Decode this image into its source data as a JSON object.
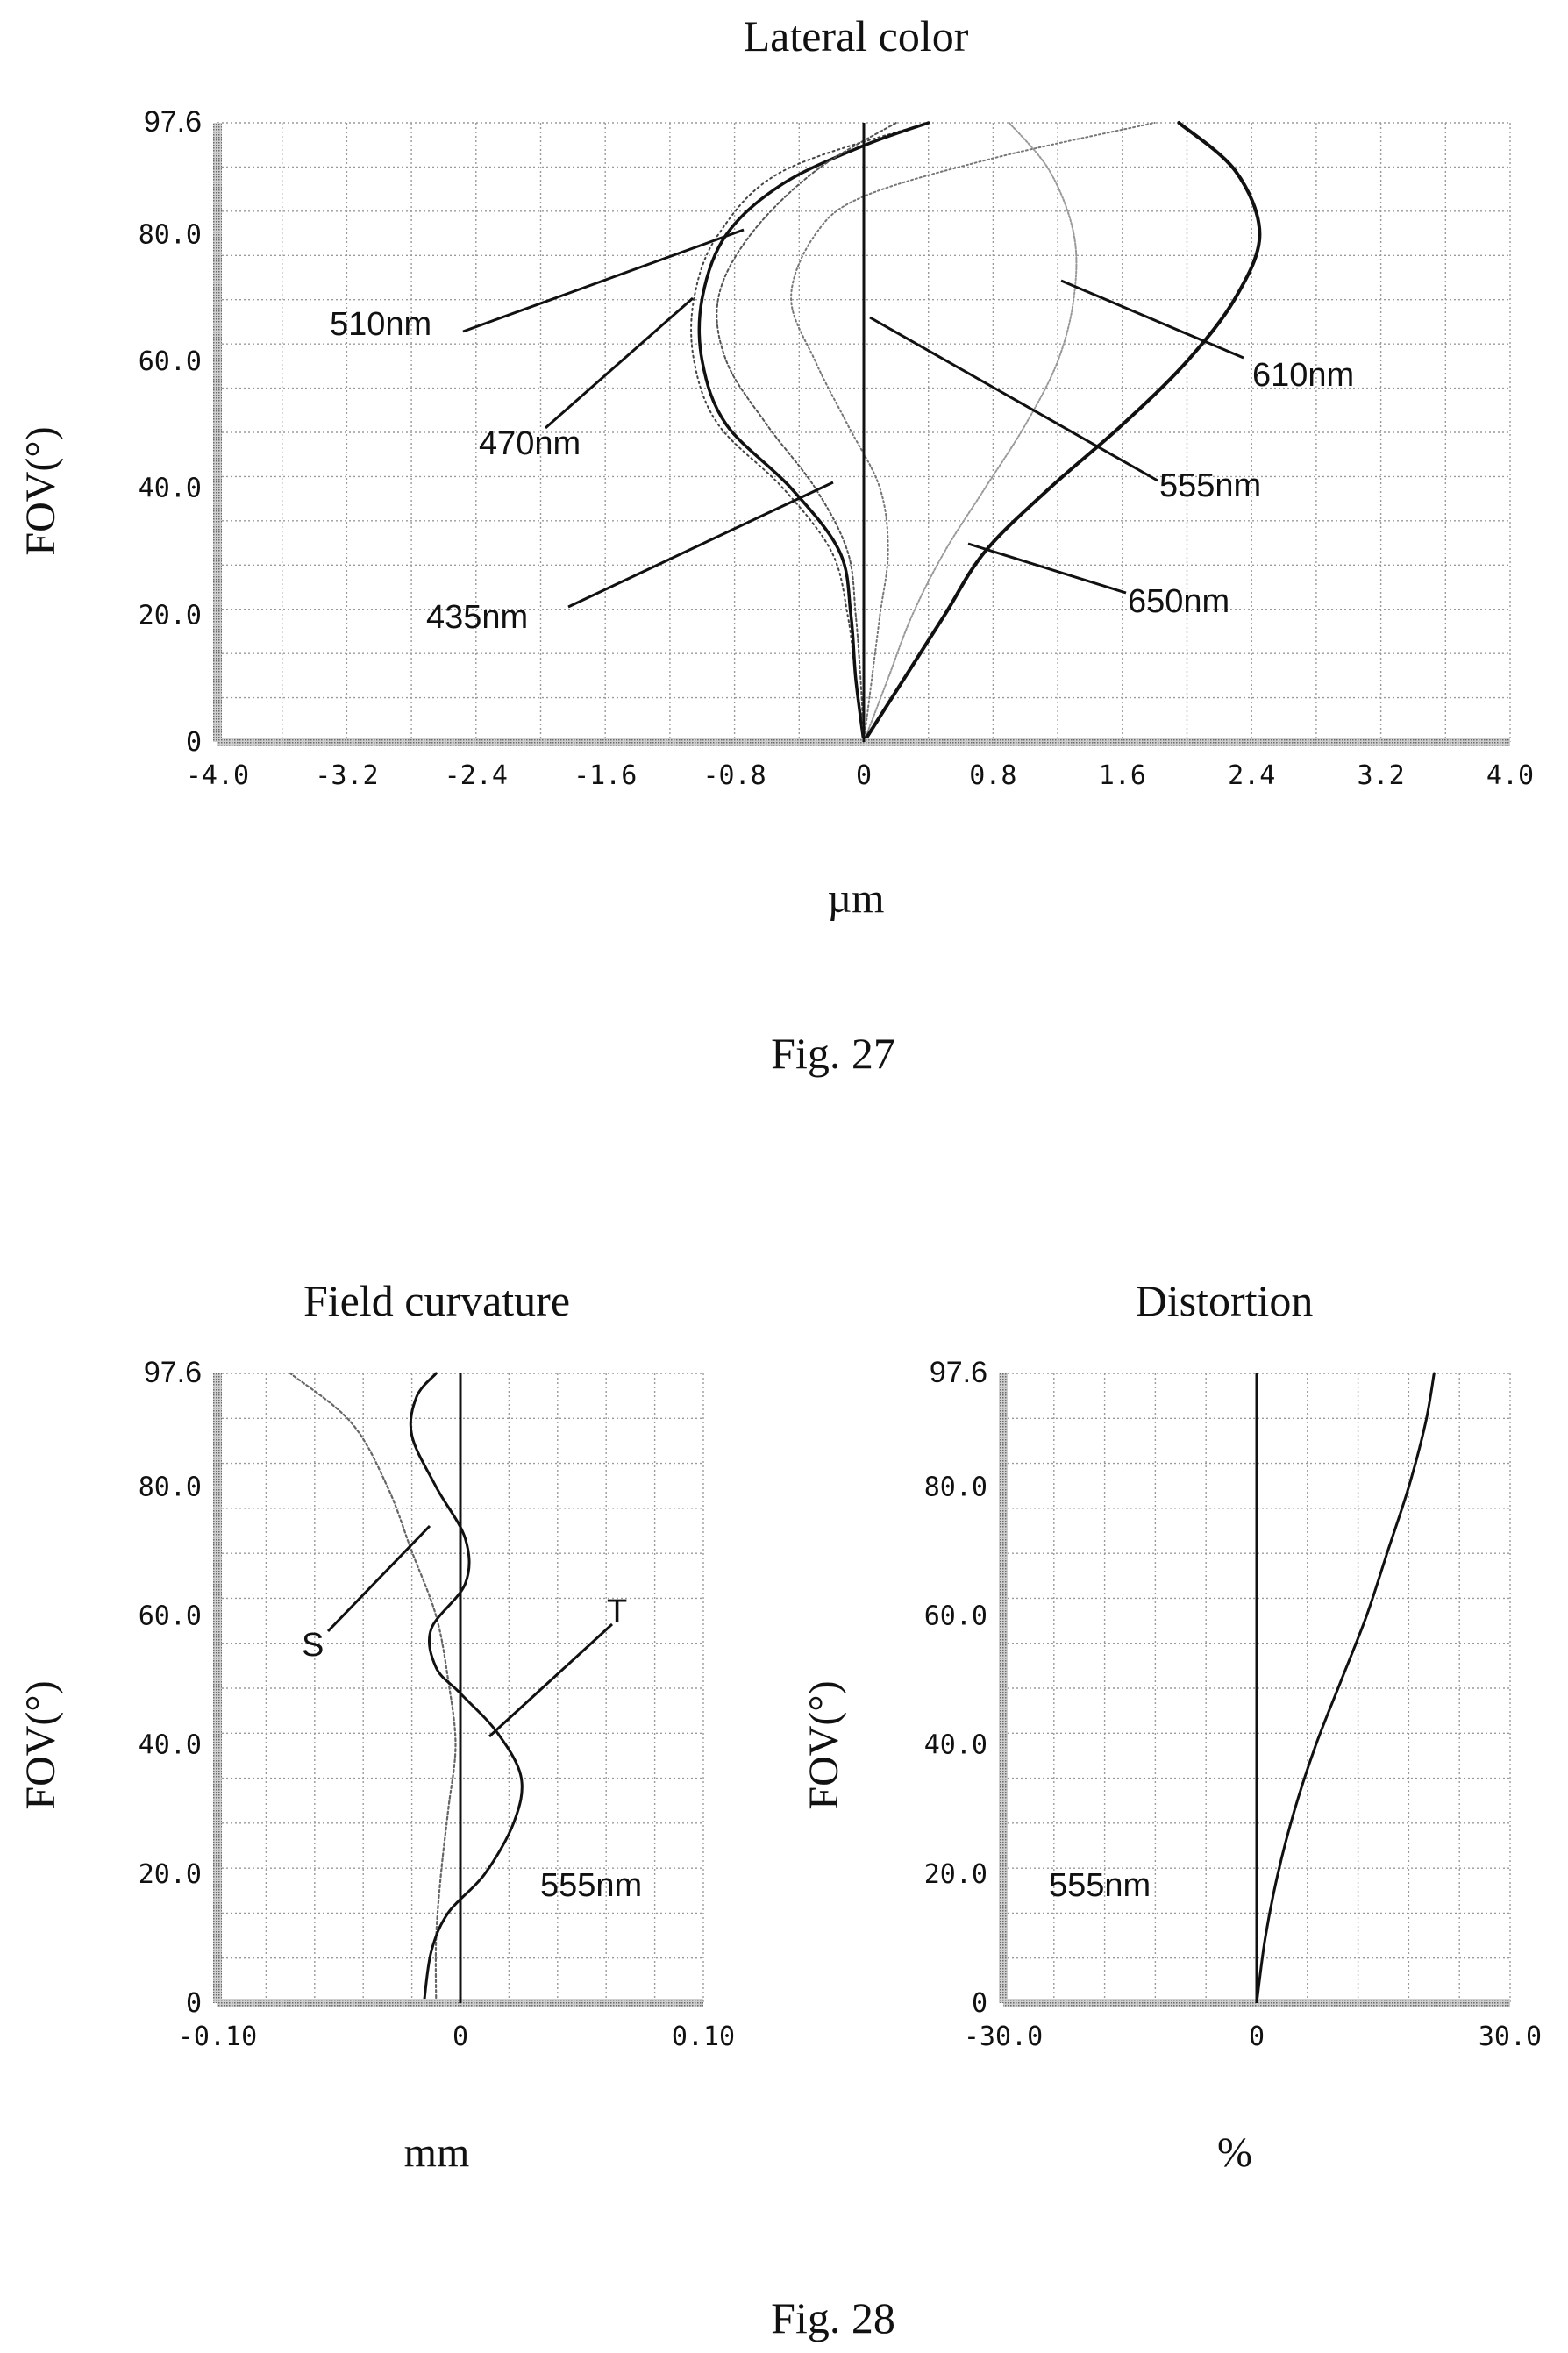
{
  "figures": [
    {
      "caption": "Fig. 27"
    },
    {
      "caption": "Fig. 28"
    }
  ],
  "chart_data": [
    {
      "type": "line",
      "title": "Lateral color",
      "xlabel": "µm",
      "ylabel": "FOV(°)",
      "xlim": [
        -4.0,
        4.0
      ],
      "ylim": [
        0,
        97.6
      ],
      "grid": true,
      "x_ticks": [
        "-4.0",
        "-3.2",
        "-2.4",
        "-1.6",
        "-0.8",
        "0",
        "0.8",
        "1.6",
        "2.4",
        "3.2",
        "4.0"
      ],
      "y_ticks": [
        "0",
        "20.0",
        "40.0",
        "60.0",
        "80.0",
        "97.6"
      ],
      "series": [
        {
          "name": "435nm",
          "points": [
            [
              0,
              0
            ],
            [
              -0.05,
              10
            ],
            [
              -0.1,
              20
            ],
            [
              -0.2,
              30
            ],
            [
              -0.5,
              40
            ],
            [
              -0.9,
              50
            ],
            [
              -1.05,
              60
            ],
            [
              -1.05,
              70
            ],
            [
              -0.9,
              80
            ],
            [
              -0.5,
              90
            ],
            [
              0.4,
              97.6
            ]
          ]
        },
        {
          "name": "470nm",
          "points": [
            [
              0,
              0
            ],
            [
              -0.05,
              10
            ],
            [
              -0.08,
              20
            ],
            [
              -0.15,
              30
            ],
            [
              -0.45,
              40
            ],
            [
              -0.85,
              50
            ],
            [
              -1.0,
              60
            ],
            [
              -1.0,
              70
            ],
            [
              -0.85,
              80
            ],
            [
              -0.5,
              88
            ],
            [
              0,
              94
            ],
            [
              0.4,
              97.6
            ]
          ]
        },
        {
          "name": "510nm",
          "points": [
            [
              0,
              0
            ],
            [
              -0.02,
              10
            ],
            [
              -0.05,
              20
            ],
            [
              -0.1,
              30
            ],
            [
              -0.3,
              40
            ],
            [
              -0.6,
              50
            ],
            [
              -0.85,
              60
            ],
            [
              -0.9,
              70
            ],
            [
              -0.7,
              80
            ],
            [
              -0.3,
              90
            ],
            [
              0.2,
              97.6
            ]
          ]
        },
        {
          "name": "555nm",
          "points": [
            [
              0,
              0
            ],
            [
              0.05,
              10
            ],
            [
              0.1,
              20
            ],
            [
              0.15,
              30
            ],
            [
              0.1,
              40
            ],
            [
              -0.1,
              50
            ],
            [
              -0.3,
              60
            ],
            [
              -0.45,
              70
            ],
            [
              -0.3,
              80
            ],
            [
              0,
              86
            ],
            [
              0.8,
              92
            ],
            [
              1.8,
              97.6
            ]
          ]
        },
        {
          "name": "610nm",
          "points": [
            [
              0,
              0
            ],
            [
              0.15,
              10
            ],
            [
              0.3,
              20
            ],
            [
              0.5,
              30
            ],
            [
              0.75,
              40
            ],
            [
              1.0,
              50
            ],
            [
              1.2,
              60
            ],
            [
              1.3,
              70
            ],
            [
              1.3,
              80
            ],
            [
              1.15,
              90
            ],
            [
              0.9,
              97.6
            ]
          ]
        },
        {
          "name": "650nm",
          "points": [
            [
              0,
              0
            ],
            [
              0.25,
              10
            ],
            [
              0.5,
              20
            ],
            [
              0.75,
              30
            ],
            [
              1.15,
              40
            ],
            [
              1.6,
              50
            ],
            [
              2.0,
              60
            ],
            [
              2.3,
              70
            ],
            [
              2.45,
              80
            ],
            [
              2.3,
              90
            ],
            [
              1.95,
              97.6
            ]
          ]
        }
      ]
    },
    {
      "type": "line",
      "title": "Field curvature",
      "xlabel": "mm",
      "ylabel": "FOV(°)",
      "xlim": [
        -0.1,
        0.1
      ],
      "ylim": [
        0,
        97.6
      ],
      "grid": true,
      "annotation": "555nm",
      "x_ticks": [
        "-0.10",
        "0",
        "0.10"
      ],
      "y_ticks": [
        "0",
        "20.0",
        "40.0",
        "60.0",
        "80.0",
        "97.6"
      ],
      "series": [
        {
          "name": "S",
          "points": [
            [
              -0.01,
              0
            ],
            [
              -0.01,
              10
            ],
            [
              -0.008,
              20
            ],
            [
              -0.005,
              30
            ],
            [
              -0.002,
              40
            ],
            [
              -0.005,
              50
            ],
            [
              -0.01,
              60
            ],
            [
              -0.02,
              70
            ],
            [
              -0.03,
              80
            ],
            [
              -0.045,
              90
            ],
            [
              -0.07,
              97.6
            ]
          ]
        },
        {
          "name": "T",
          "points": [
            [
              -0.015,
              0
            ],
            [
              -0.012,
              8
            ],
            [
              -0.005,
              14
            ],
            [
              0.01,
              20
            ],
            [
              0.022,
              28
            ],
            [
              0.025,
              35
            ],
            [
              0.015,
              42
            ],
            [
              0.0,
              48
            ],
            [
              -0.01,
              52
            ],
            [
              -0.012,
              58
            ],
            [
              0.002,
              65
            ],
            [
              0.002,
              72
            ],
            [
              -0.01,
              80
            ],
            [
              -0.02,
              88
            ],
            [
              -0.018,
              94
            ],
            [
              -0.01,
              97.6
            ]
          ]
        }
      ]
    },
    {
      "type": "line",
      "title": "Distortion",
      "xlabel": "%",
      "ylabel": "FOV(°)",
      "xlim": [
        -30.0,
        30.0
      ],
      "ylim": [
        0,
        97.6
      ],
      "grid": true,
      "annotation": "555nm",
      "x_ticks": [
        "-30.0",
        "0",
        "30.0"
      ],
      "y_ticks": [
        "0",
        "20.0",
        "40.0",
        "60.0",
        "80.0",
        "97.6"
      ],
      "series": [
        {
          "name": "555nm",
          "points": [
            [
              0,
              0
            ],
            [
              1.0,
              10
            ],
            [
              2.5,
              20
            ],
            [
              4.5,
              30
            ],
            [
              7.0,
              40
            ],
            [
              10.0,
              50
            ],
            [
              13.0,
              60
            ],
            [
              15.5,
              70
            ],
            [
              18.0,
              80
            ],
            [
              20.0,
              90
            ],
            [
              21.0,
              97.6
            ]
          ]
        }
      ]
    }
  ]
}
